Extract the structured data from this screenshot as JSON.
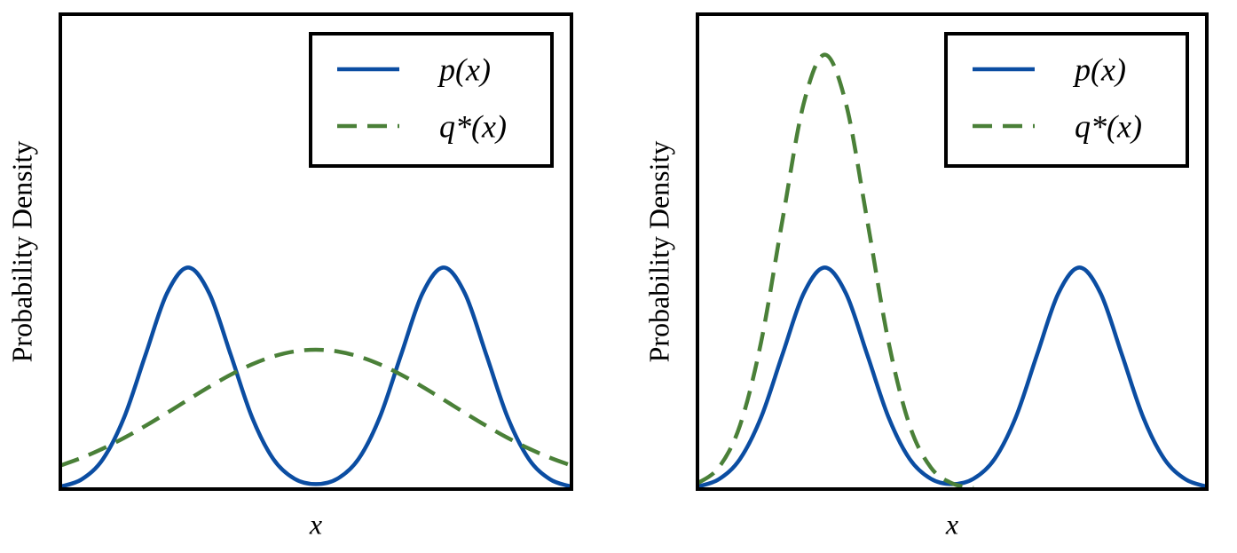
{
  "chart_data": [
    {
      "type": "line",
      "xlabel": "x",
      "ylabel": "Probability Density",
      "xlim": [
        -3,
        3
      ],
      "ylim": [
        0,
        0.855
      ],
      "legend": "upper right",
      "x": [
        -3,
        -2.75,
        -2.5,
        -2.25,
        -2,
        -1.75,
        -1.5,
        -1.25,
        -1,
        -0.75,
        -0.5,
        -0.25,
        0,
        0.25,
        0.5,
        0.75,
        1,
        1.25,
        1.5,
        1.75,
        2,
        2.25,
        2.5,
        2.75,
        3
      ],
      "series": [
        {
          "name": "p(x)",
          "color": "#0b4da2",
          "dash": false,
          "values": [
            0.0044,
            0.0175,
            0.054,
            0.1295,
            0.2419,
            0.352,
            0.3989,
            0.352,
            0.2419,
            0.1295,
            0.0541,
            0.0184,
            0.0089,
            0.0184,
            0.0541,
            0.1295,
            0.2419,
            0.352,
            0.3989,
            0.352,
            0.2419,
            0.1295,
            0.054,
            0.0175,
            0.0044
          ]
        },
        {
          "name": "q*(x)",
          "color": "#4a8038",
          "dash": true,
          "values": [
            0.0424,
            0.0563,
            0.073,
            0.0923,
            0.1139,
            0.137,
            0.1609,
            0.1843,
            0.206,
            0.2246,
            0.2389,
            0.2479,
            0.251,
            0.2479,
            0.2389,
            0.2246,
            0.206,
            0.1843,
            0.1609,
            0.137,
            0.1139,
            0.0923,
            0.073,
            0.0563,
            0.0424
          ]
        }
      ]
    },
    {
      "type": "line",
      "xlabel": "x",
      "ylabel": "Probability Density",
      "xlim": [
        -3,
        3
      ],
      "ylim": [
        0,
        0.855
      ],
      "legend": "upper right",
      "x": [
        -3,
        -2.75,
        -2.5,
        -2.25,
        -2,
        -1.75,
        -1.5,
        -1.25,
        -1,
        -0.75,
        -0.5,
        -0.25,
        0,
        0.25,
        0.5,
        0.75,
        1,
        1.25,
        1.5,
        1.75,
        2,
        2.25,
        2.5,
        2.75,
        3
      ],
      "series": [
        {
          "name": "p(x)",
          "color": "#0b4da2",
          "dash": false,
          "values": [
            0.0044,
            0.0175,
            0.054,
            0.1295,
            0.2419,
            0.352,
            0.3989,
            0.352,
            0.2419,
            0.1295,
            0.0541,
            0.0184,
            0.0089,
            0.0184,
            0.0541,
            0.1295,
            0.2419,
            0.352,
            0.3989,
            0.352,
            0.2419,
            0.1295,
            0.054,
            0.0175,
            0.0044
          ]
        },
        {
          "name": "q*(x)",
          "color": "#4a8038",
          "dash": true,
          "values": [
            0.0103,
            0.0387,
            0.1143,
            0.2651,
            0.4835,
            0.6934,
            0.782,
            0.6934,
            0.4835,
            0.2651,
            0.1143,
            0.0387,
            0.0103,
            0.0022,
            null,
            null,
            null,
            null,
            null,
            null,
            null,
            null,
            null,
            null,
            null
          ]
        }
      ]
    }
  ]
}
